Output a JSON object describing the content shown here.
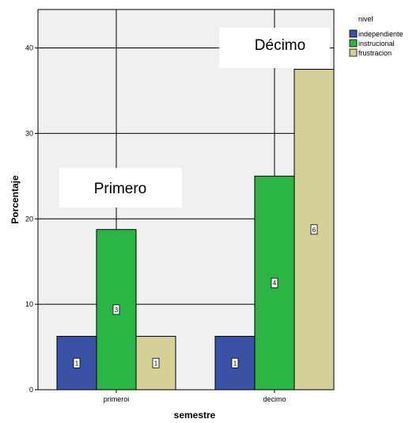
{
  "chart_data": {
    "type": "bar",
    "categories": [
      "primeroi",
      "decimo"
    ],
    "series": [
      {
        "name": "independiente",
        "values": [
          6.25,
          6.25
        ],
        "counts": [
          "1",
          "1"
        ],
        "color": "#3a52a6"
      },
      {
        "name": "instrucional",
        "values": [
          18.75,
          25
        ],
        "counts": [
          "3",
          "4"
        ],
        "color": "#2bb544"
      },
      {
        "name": "frustracion",
        "values": [
          6.25,
          37.5
        ],
        "counts": [
          "1",
          "6"
        ],
        "color": "#d5cf98"
      }
    ],
    "xlabel": "semestre",
    "ylabel": "Porcentaje",
    "ylim": [
      0,
      44.5
    ],
    "yticks": [
      "0",
      "10",
      "20",
      "30",
      "40"
    ],
    "legend_title": "nivel",
    "legend_position": "top-right",
    "grid": true,
    "annotations": [
      "Primero",
      "Décimo"
    ],
    "plot_background": "#f0f0f0"
  }
}
